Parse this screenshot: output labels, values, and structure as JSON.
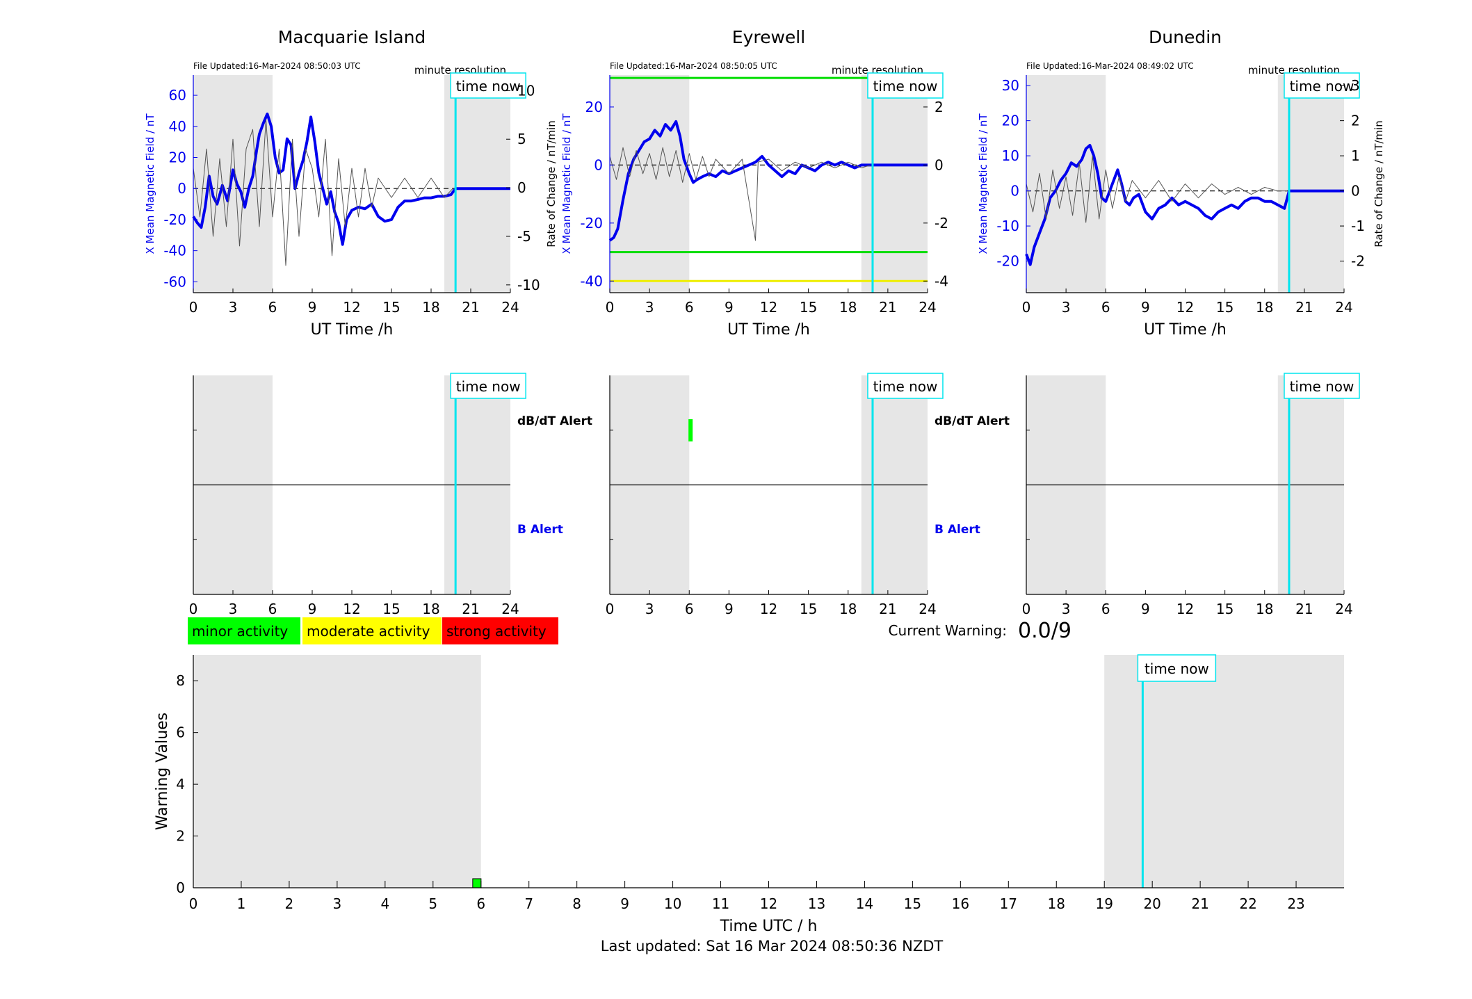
{
  "footer": {
    "last_updated": "Last updated: Sat 16 Mar 2024 08:50:36 NZDT"
  },
  "labels": {
    "time_now": "time now",
    "minute_resolution": "minute resolution",
    "x_axis": "UT Time /h",
    "y_left": "X Mean Magnetic Field / nT",
    "y_right": "Rate of Change / nT/min",
    "dbdt_alert": "dB/dT Alert",
    "b_alert": "B Alert",
    "current_warning_label": "Current Warning:",
    "current_warning_value": "0.0/9",
    "warning_xlabel": "Time UTC / h",
    "warning_ylabel": "Warning Values"
  },
  "legend": [
    {
      "label": "minor activity",
      "color": "#00ff00"
    },
    {
      "label": "moderate activity",
      "color": "#ffff00"
    },
    {
      "label": "strong activity",
      "color": "#ff0000"
    }
  ],
  "colors": {
    "field_line": "#0000ee",
    "rate_line": "#555555",
    "time_now": "#00e5ee",
    "night_shade": "#e6e6e6",
    "threshold_green": "#00dd00",
    "threshold_yellow": "#eeee00"
  },
  "chart_data": [
    {
      "type": "line",
      "title": "Macquarie Island",
      "file_updated": "File Updated:16-Mar-2024 08:50:03 UTC",
      "xlabel": "UT Time /h",
      "xlim": [
        0,
        24
      ],
      "xticks": [
        0,
        3,
        6,
        9,
        12,
        15,
        18,
        21,
        24
      ],
      "ylim": [
        -67,
        73
      ],
      "yticks": [
        -60,
        -40,
        -20,
        0,
        20,
        40,
        60
      ],
      "y2lim": [
        -10.8,
        11.6
      ],
      "y2ticks": [
        -10,
        -5,
        0,
        5,
        10
      ],
      "y2label": "",
      "shade": [
        [
          0,
          6
        ],
        [
          19,
          24
        ]
      ],
      "time_now": 19.85,
      "thresholds": [],
      "series": [
        {
          "role": "field",
          "x": [
            0,
            0.3,
            0.6,
            0.9,
            1.2,
            1.5,
            1.8,
            2.2,
            2.6,
            3.0,
            3.3,
            3.6,
            3.9,
            4.2,
            4.5,
            4.8,
            5.0,
            5.3,
            5.6,
            5.9,
            6.2,
            6.5,
            6.8,
            7.1,
            7.4,
            7.7,
            8.0,
            8.3,
            8.6,
            8.9,
            9.2,
            9.5,
            9.8,
            10.1,
            10.4,
            10.7,
            11.0,
            11.3,
            11.6,
            12.0,
            12.5,
            13.0,
            13.5,
            14.0,
            14.5,
            15.0,
            15.5,
            16.0,
            16.5,
            17.0,
            17.5,
            18.0,
            18.5,
            19.0,
            19.5,
            19.85,
            20.5,
            21.5,
            22.5,
            24
          ],
          "y": [
            -18,
            -22,
            -25,
            -12,
            8,
            -5,
            -10,
            2,
            -8,
            12,
            3,
            -2,
            -12,
            0,
            8,
            25,
            35,
            42,
            48,
            40,
            20,
            10,
            12,
            32,
            28,
            0,
            10,
            18,
            30,
            46,
            30,
            10,
            0,
            -10,
            -2,
            -15,
            -22,
            -36,
            -20,
            -14,
            -12,
            -13,
            -10,
            -18,
            -21,
            -20,
            -12,
            -8,
            -8,
            -7,
            -6,
            -6,
            -5,
            -5,
            -4,
            0,
            0,
            0,
            0,
            0
          ]
        },
        {
          "role": "rate",
          "x": [
            0,
            0.5,
            1.0,
            1.5,
            2.0,
            2.5,
            3.0,
            3.5,
            4.0,
            4.5,
            5.0,
            5.5,
            6.0,
            6.5,
            7.0,
            7.5,
            8.0,
            8.5,
            9.0,
            9.5,
            10.0,
            10.5,
            11.0,
            11.5,
            12.0,
            12.5,
            13.0,
            13.5,
            14.0,
            15.0,
            16.0,
            17.0,
            18.0,
            19.0,
            19.7
          ],
          "y": [
            2,
            -3,
            4,
            -5,
            3,
            -4,
            5,
            -6,
            4,
            6,
            -4,
            7,
            -3,
            4,
            -8,
            5,
            -5,
            4,
            2,
            -3,
            5,
            -7,
            3,
            -4,
            2,
            -3,
            2,
            -2,
            1,
            -1,
            1,
            -1,
            1,
            -1,
            0
          ]
        }
      ]
    },
    {
      "type": "line",
      "title": "Eyrewell",
      "file_updated": "File Updated:16-Mar-2024 08:50:05 UTC",
      "xlabel": "UT Time /h",
      "xlim": [
        0,
        24
      ],
      "xticks": [
        0,
        3,
        6,
        9,
        12,
        15,
        18,
        21,
        24
      ],
      "ylim": [
        -44,
        31
      ],
      "yticks": [
        -40,
        -20,
        0,
        20
      ],
      "y2lim": [
        -4.4,
        3.1
      ],
      "y2ticks": [
        -4,
        -2,
        0,
        2
      ],
      "y2label": "Rate of Change / nT/min",
      "shade": [
        [
          0,
          6
        ],
        [
          19,
          24
        ]
      ],
      "time_now": 19.85,
      "thresholds": [
        {
          "y": 30,
          "color": "#00dd00"
        },
        {
          "y": -30,
          "color": "#00dd00"
        },
        {
          "y": -40,
          "color": "#eeee00"
        }
      ],
      "series": [
        {
          "role": "field",
          "x": [
            0,
            0.3,
            0.6,
            1.0,
            1.4,
            1.8,
            2.2,
            2.6,
            3.0,
            3.4,
            3.8,
            4.2,
            4.6,
            5.0,
            5.3,
            5.6,
            6.0,
            6.3,
            6.6,
            7.0,
            7.5,
            8.0,
            8.5,
            9.0,
            9.5,
            10.0,
            10.5,
            11.0,
            11.5,
            12.0,
            12.5,
            13.0,
            13.5,
            14.0,
            14.5,
            15.0,
            15.5,
            16.0,
            16.5,
            17.0,
            17.5,
            18.0,
            18.5,
            19.0,
            19.85,
            21,
            24
          ],
          "y": [
            -26,
            -25,
            -22,
            -12,
            -3,
            2,
            5,
            8,
            9,
            12,
            10,
            14,
            12,
            15,
            10,
            2,
            -3,
            -6,
            -5,
            -4,
            -3,
            -4,
            -2,
            -3,
            -2,
            -1,
            0,
            1,
            3,
            0,
            -2,
            -4,
            -2,
            -3,
            0,
            -1,
            -2,
            0,
            1,
            0,
            1,
            0,
            -1,
            0,
            0,
            0,
            0
          ]
        },
        {
          "role": "rate",
          "x": [
            0,
            0.5,
            1.0,
            1.5,
            2.0,
            2.5,
            3.0,
            3.5,
            4.0,
            4.5,
            5.0,
            5.5,
            6.0,
            6.5,
            7.0,
            7.5,
            8.0,
            9.0,
            10.0,
            11.0,
            11.2,
            12.0,
            13.0,
            14.0,
            15.0,
            16.0,
            17.0,
            18.0,
            19.0,
            19.7
          ],
          "y": [
            0.3,
            -0.5,
            0.6,
            -0.4,
            0.5,
            -0.3,
            0.4,
            -0.5,
            0.6,
            -0.4,
            0.5,
            -0.6,
            0.4,
            -0.5,
            0.3,
            -0.4,
            0.2,
            -0.3,
            0.2,
            -2.6,
            0.1,
            0.2,
            -0.2,
            0.1,
            -0.1,
            0.1,
            -0.1,
            0.1,
            -0.1,
            0
          ]
        }
      ]
    },
    {
      "type": "line",
      "title": "Dunedin",
      "file_updated": "File Updated:16-Mar-2024 08:49:02 UTC",
      "xlabel": "UT Time /h",
      "xlim": [
        0,
        24
      ],
      "xticks": [
        0,
        3,
        6,
        9,
        12,
        15,
        18,
        21,
        24
      ],
      "ylim": [
        -29,
        33
      ],
      "yticks": [
        -20,
        -10,
        0,
        10,
        20,
        30
      ],
      "y2lim": [
        -2.9,
        3.3
      ],
      "y2ticks": [
        -2,
        -1,
        0,
        1,
        2,
        3
      ],
      "y2label": "Rate of Change / nT/min",
      "shade": [
        [
          0,
          6
        ],
        [
          19,
          24
        ]
      ],
      "time_now": 19.85,
      "thresholds": [],
      "series": [
        {
          "role": "field",
          "x": [
            0,
            0.3,
            0.6,
            1.0,
            1.4,
            1.8,
            2.2,
            2.6,
            3.0,
            3.4,
            3.8,
            4.2,
            4.5,
            4.8,
            5.1,
            5.4,
            5.7,
            6.0,
            6.3,
            6.6,
            6.9,
            7.2,
            7.5,
            7.8,
            8.1,
            8.5,
            9.0,
            9.5,
            10.0,
            10.5,
            11.0,
            11.5,
            12.0,
            12.5,
            13.0,
            13.5,
            14.0,
            14.5,
            15.0,
            15.5,
            16.0,
            16.5,
            17.0,
            17.5,
            18.0,
            18.5,
            19.0,
            19.5,
            19.85,
            21,
            24
          ],
          "y": [
            -18,
            -21,
            -16,
            -12,
            -8,
            -2,
            0,
            3,
            5,
            8,
            7,
            9,
            12,
            13,
            10,
            5,
            -2,
            -3,
            0,
            3,
            6,
            2,
            -3,
            -4,
            -2,
            -1,
            -6,
            -8,
            -5,
            -4,
            -2,
            -4,
            -3,
            -4,
            -5,
            -7,
            -8,
            -6,
            -5,
            -4,
            -5,
            -3,
            -2,
            -2,
            -3,
            -3,
            -4,
            -5,
            0,
            0,
            0
          ]
        },
        {
          "role": "rate",
          "x": [
            0,
            0.5,
            1.0,
            1.5,
            2.0,
            2.5,
            3.0,
            3.5,
            4.0,
            4.5,
            5.0,
            5.5,
            6.0,
            6.5,
            7.0,
            7.5,
            8.0,
            9.0,
            10.0,
            11.0,
            12.0,
            13.0,
            14.0,
            15.0,
            16.0,
            17.0,
            18.0,
            19.0,
            19.7
          ],
          "y": [
            0.2,
            -0.6,
            0.5,
            -0.8,
            0.6,
            -0.5,
            0.4,
            -0.7,
            0.8,
            -0.9,
            1.0,
            -0.8,
            0.6,
            -0.5,
            0.4,
            -0.3,
            0.3,
            -0.2,
            0.3,
            -0.3,
            0.2,
            -0.2,
            0.2,
            -0.1,
            0.1,
            -0.1,
            0.1,
            0,
            0
          ]
        }
      ]
    },
    {
      "type": "alert",
      "xlim": [
        0,
        24
      ],
      "xticks": [
        0,
        3,
        6,
        9,
        12,
        15,
        18,
        21,
        24
      ],
      "panels": [
        {
          "station": "Macquarie Island",
          "shade": [
            [
              0,
              6
            ],
            [
              19,
              24
            ]
          ],
          "time_now": 19.85,
          "dbdt_marks": []
        },
        {
          "station": "Eyrewell",
          "shade": [
            [
              0,
              6
            ],
            [
              19,
              24
            ]
          ],
          "time_now": 19.85,
          "dbdt_marks": [
            {
              "x": 6.1,
              "color": "#00ff00"
            }
          ]
        },
        {
          "station": "Dunedin",
          "shade": [
            [
              0,
              6
            ],
            [
              19,
              24
            ]
          ],
          "time_now": 19.85,
          "dbdt_marks": []
        }
      ]
    },
    {
      "type": "bar",
      "xlabel": "Time UTC / h",
      "ylabel": "Warning Values",
      "xlim": [
        0,
        24
      ],
      "xticks": [
        0,
        1,
        2,
        3,
        4,
        5,
        6,
        7,
        8,
        9,
        10,
        11,
        12,
        13,
        14,
        15,
        16,
        17,
        18,
        19,
        20,
        21,
        22,
        23
      ],
      "ylim": [
        0,
        9
      ],
      "yticks": [
        0,
        2,
        4,
        6,
        8
      ],
      "shade": [
        [
          0,
          6
        ],
        [
          19,
          24
        ]
      ],
      "time_now": 19.8,
      "bars": [
        {
          "x": 5.9,
          "value": 0.35,
          "color": "#00ff00"
        }
      ]
    }
  ]
}
